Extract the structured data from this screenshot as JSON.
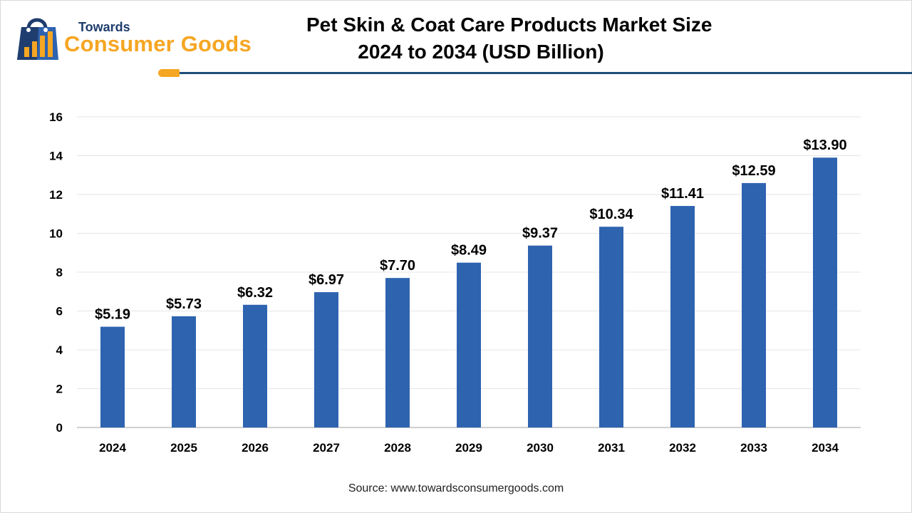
{
  "logo": {
    "line1": "Towards",
    "line2": "Consumer Goods",
    "icon": "shopping-bag-bar-chart-icon"
  },
  "header": {
    "title_line1": "Pet Skin & Coat Care Products Market Size",
    "title_line2": "2024 to 2034 (USD Billion)"
  },
  "colors": {
    "bar": "#2e63b0",
    "accent": "#f5a623",
    "rule": "#1f4e79"
  },
  "chart_data": {
    "type": "bar",
    "title": "Pet Skin & Coat Care Products Market Size 2024 to 2034 (USD Billion)",
    "xlabel": "",
    "ylabel": "",
    "categories": [
      "2024",
      "2025",
      "2026",
      "2027",
      "2028",
      "2029",
      "2030",
      "2031",
      "2032",
      "2033",
      "2034"
    ],
    "values": [
      5.19,
      5.73,
      6.32,
      6.97,
      7.7,
      8.49,
      9.37,
      10.34,
      11.41,
      12.59,
      13.9
    ],
    "data_labels": [
      "$5.19",
      "$5.73",
      "$6.32",
      "$6.97",
      "$7.70",
      "$8.49",
      "$9.37",
      "$10.34",
      "$11.41",
      "$12.59",
      "$13.90"
    ],
    "ylim": [
      0,
      16
    ],
    "yticks": [
      0,
      2,
      4,
      6,
      8,
      10,
      12,
      14,
      16
    ],
    "grid": true,
    "legend": "none"
  },
  "footer": {
    "source": "Source: www.towardsconsumergoods.com"
  }
}
